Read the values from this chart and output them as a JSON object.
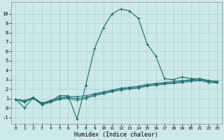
{
  "xlabel": "Humidex (Indice chaleur)",
  "bg_color": "#cce8e8",
  "line_color": "#1a6b6b",
  "grid_color": "#aacfcf",
  "xlim": [
    -0.5,
    23.5
  ],
  "ylim": [
    -1.7,
    11.2
  ],
  "xticks": [
    0,
    1,
    2,
    3,
    4,
    5,
    6,
    7,
    8,
    9,
    10,
    11,
    12,
    13,
    14,
    15,
    16,
    17,
    18,
    19,
    20,
    21,
    22,
    23
  ],
  "yticks": [
    -1,
    0,
    1,
    2,
    3,
    4,
    5,
    6,
    7,
    8,
    9,
    10
  ],
  "main_line": {
    "x": [
      0,
      1,
      2,
      3,
      4,
      5,
      6,
      7,
      8,
      9,
      10,
      11,
      12,
      13,
      14,
      15,
      16,
      17,
      18,
      19,
      20,
      21,
      22,
      23
    ],
    "y": [
      0.9,
      0.0,
      1.1,
      0.5,
      0.7,
      1.3,
      1.3,
      -1.2,
      2.4,
      6.3,
      8.5,
      10.0,
      10.5,
      10.3,
      9.5,
      6.8,
      5.5,
      3.1,
      3.0,
      3.3,
      3.1,
      3.1,
      2.9,
      2.8
    ]
  },
  "flat_lines": [
    {
      "x": [
        0,
        1,
        2,
        3,
        4,
        5,
        6,
        7,
        8,
        9,
        10,
        11,
        12,
        13,
        14,
        15,
        16,
        17,
        18,
        19,
        20,
        21,
        22,
        23
      ],
      "y": [
        0.9,
        0.8,
        1.1,
        0.5,
        0.8,
        1.1,
        1.2,
        1.2,
        1.3,
        1.5,
        1.7,
        1.9,
        2.1,
        2.2,
        2.3,
        2.5,
        2.6,
        2.7,
        2.8,
        2.9,
        3.0,
        3.1,
        2.9,
        2.8
      ]
    },
    {
      "x": [
        0,
        1,
        2,
        3,
        4,
        5,
        6,
        7,
        8,
        9,
        10,
        11,
        12,
        13,
        14,
        15,
        16,
        17,
        18,
        19,
        20,
        21,
        22,
        23
      ],
      "y": [
        0.9,
        0.7,
        1.0,
        0.4,
        0.7,
        1.0,
        1.1,
        1.0,
        1.1,
        1.4,
        1.6,
        1.8,
        2.0,
        2.1,
        2.2,
        2.4,
        2.5,
        2.6,
        2.7,
        2.8,
        2.9,
        3.0,
        2.8,
        2.7
      ]
    },
    {
      "x": [
        0,
        1,
        2,
        3,
        4,
        5,
        6,
        7,
        8,
        9,
        10,
        11,
        12,
        13,
        14,
        15,
        16,
        17,
        18,
        19,
        20,
        21,
        22,
        23
      ],
      "y": [
        0.9,
        0.6,
        1.05,
        0.3,
        0.6,
        0.9,
        1.0,
        0.8,
        1.0,
        1.3,
        1.5,
        1.7,
        1.9,
        2.0,
        2.1,
        2.3,
        2.4,
        2.5,
        2.6,
        2.7,
        2.8,
        2.9,
        2.7,
        2.65
      ]
    }
  ]
}
